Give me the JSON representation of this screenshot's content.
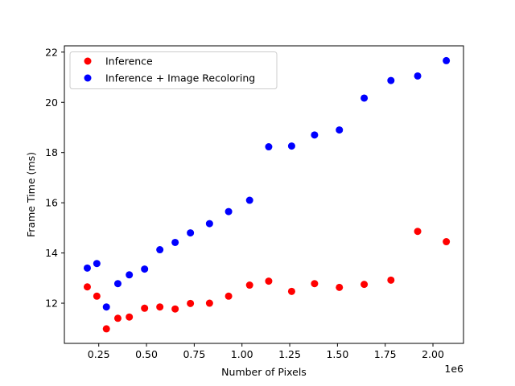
{
  "chart_data": {
    "type": "scatter",
    "title": "",
    "xlabel": "Number of Pixels",
    "ylabel": "Frame Time (ms)",
    "x_offset_label": "1e6",
    "xlim": [
      0.07,
      2.16
    ],
    "ylim": [
      10.4,
      22.25
    ],
    "xticks": [
      0.25,
      0.5,
      0.75,
      1.0,
      1.25,
      1.5,
      1.75,
      2.0
    ],
    "xtick_labels": [
      "0.25",
      "0.50",
      "0.75",
      "1.00",
      "1.25",
      "1.50",
      "1.75",
      "2.00"
    ],
    "yticks": [
      12,
      14,
      16,
      18,
      20,
      22
    ],
    "ytick_labels": [
      "12",
      "14",
      "16",
      "18",
      "20",
      "22"
    ],
    "grid": false,
    "legend_position": "upper-left",
    "series": [
      {
        "name": "Inference",
        "color": "#ff0000",
        "x": [
          0.19,
          0.24,
          0.29,
          0.35,
          0.41,
          0.49,
          0.57,
          0.65,
          0.73,
          0.83,
          0.93,
          1.04,
          1.14,
          1.26,
          1.38,
          1.51,
          1.64,
          1.78,
          1.92,
          2.07
        ],
        "y": [
          12.65,
          12.28,
          10.98,
          11.4,
          11.45,
          11.8,
          11.85,
          11.77,
          11.99,
          12.0,
          12.28,
          12.72,
          12.88,
          12.47,
          12.78,
          12.63,
          12.75,
          12.92,
          14.86,
          14.45
        ]
      },
      {
        "name": "Inference + Image Recoloring",
        "color": "#0000ff",
        "x": [
          0.19,
          0.24,
          0.29,
          0.35,
          0.41,
          0.49,
          0.57,
          0.65,
          0.73,
          0.83,
          0.93,
          1.04,
          1.14,
          1.26,
          1.38,
          1.51,
          1.64,
          1.78,
          1.92,
          2.07
        ],
        "y": [
          13.4,
          13.58,
          11.85,
          12.78,
          13.13,
          13.36,
          14.13,
          14.42,
          14.8,
          15.17,
          15.65,
          16.1,
          18.23,
          18.26,
          18.7,
          18.9,
          20.17,
          20.87,
          21.05,
          21.66
        ]
      }
    ]
  }
}
